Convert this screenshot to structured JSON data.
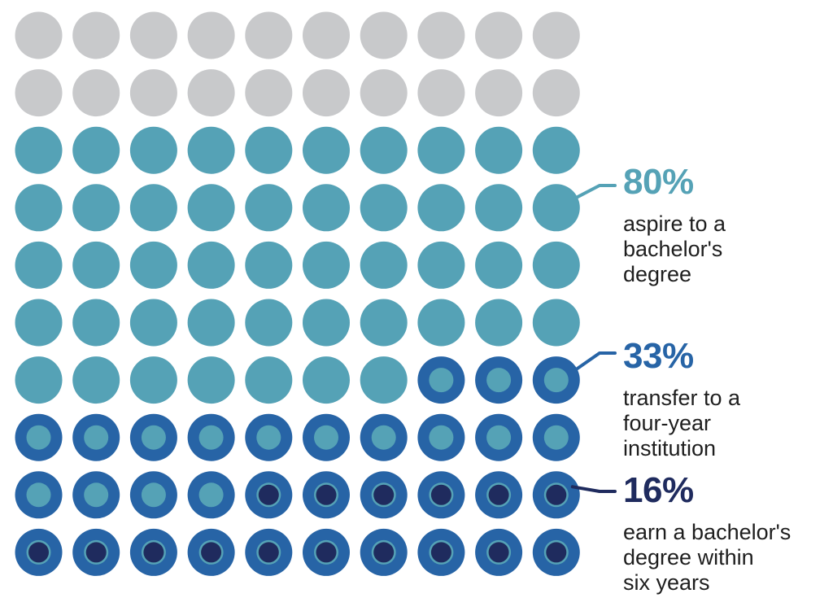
{
  "chart_data": {
    "type": "waffle",
    "total": 100,
    "grid": {
      "rows": 10,
      "cols": 10
    },
    "colors": {
      "empty": "#c8c9cb",
      "aspire": "#55a2b6",
      "transfer_ring": "#2764a6",
      "earn_inner": "#1f2b5e",
      "text": "#1e1e1e"
    },
    "series": [
      {
        "value": 80,
        "label": "80%",
        "description": "aspire to a\nbachelor's\ndegree",
        "color": "#55a2b6"
      },
      {
        "value": 33,
        "label": "33%",
        "description": "transfer to a\nfour-year\ninstitution",
        "color": "#2764a6"
      },
      {
        "value": 16,
        "label": "16%",
        "description": "earn a bachelor's\ndegree within\nsix years",
        "color": "#1f2b5e"
      }
    ]
  }
}
